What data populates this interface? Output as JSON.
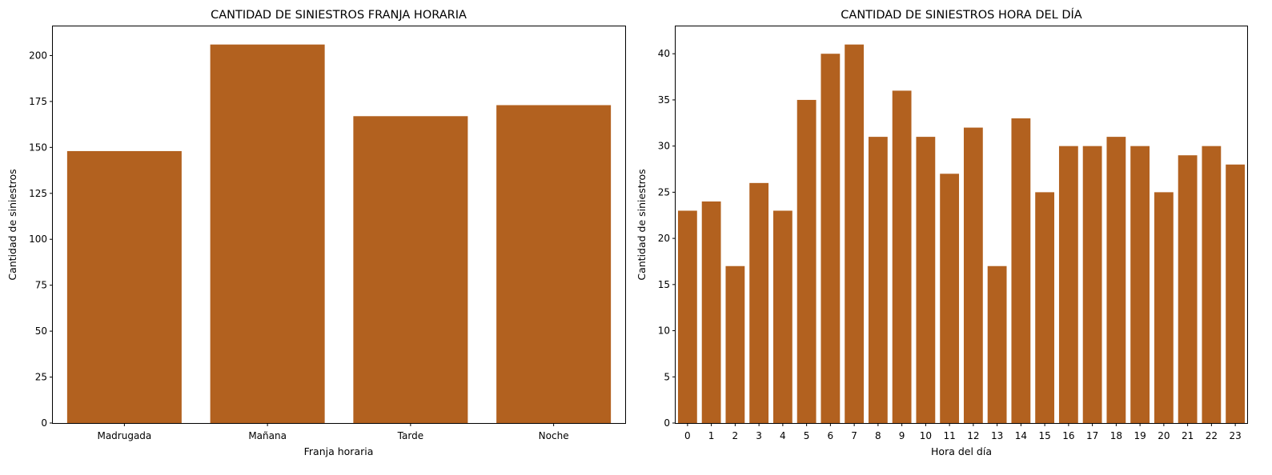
{
  "chart_data": [
    {
      "type": "bar",
      "title": "CANTIDAD DE SINIESTROS FRANJA HORARIA",
      "xlabel": "Franja horaria",
      "ylabel": "Cantidad de siniestros",
      "categories": [
        "Madrugada",
        "Mañana",
        "Tarde",
        "Noche"
      ],
      "values": [
        148,
        206,
        167,
        173
      ],
      "ylim": [
        0,
        216.3
      ],
      "yticks": [
        0,
        25,
        50,
        75,
        100,
        125,
        150,
        175,
        200
      ],
      "bar_color": "#b2611f",
      "grid": false
    },
    {
      "type": "bar",
      "title": "CANTIDAD DE SINIESTROS HORA DEL DÍA",
      "xlabel": "Hora del día",
      "ylabel": "Cantidad de siniestros",
      "categories": [
        "0",
        "1",
        "2",
        "3",
        "4",
        "5",
        "6",
        "7",
        "8",
        "9",
        "10",
        "11",
        "12",
        "13",
        "14",
        "15",
        "16",
        "17",
        "18",
        "19",
        "20",
        "21",
        "22",
        "23"
      ],
      "values": [
        23,
        24,
        17,
        26,
        23,
        35,
        40,
        41,
        31,
        36,
        31,
        27,
        32,
        17,
        33,
        25,
        30,
        30,
        31,
        30,
        25,
        29,
        30,
        28
      ],
      "ylim": [
        0,
        43.05
      ],
      "yticks": [
        0,
        5,
        10,
        15,
        20,
        25,
        30,
        35,
        40
      ],
      "bar_color": "#b2611f",
      "grid": false
    }
  ]
}
